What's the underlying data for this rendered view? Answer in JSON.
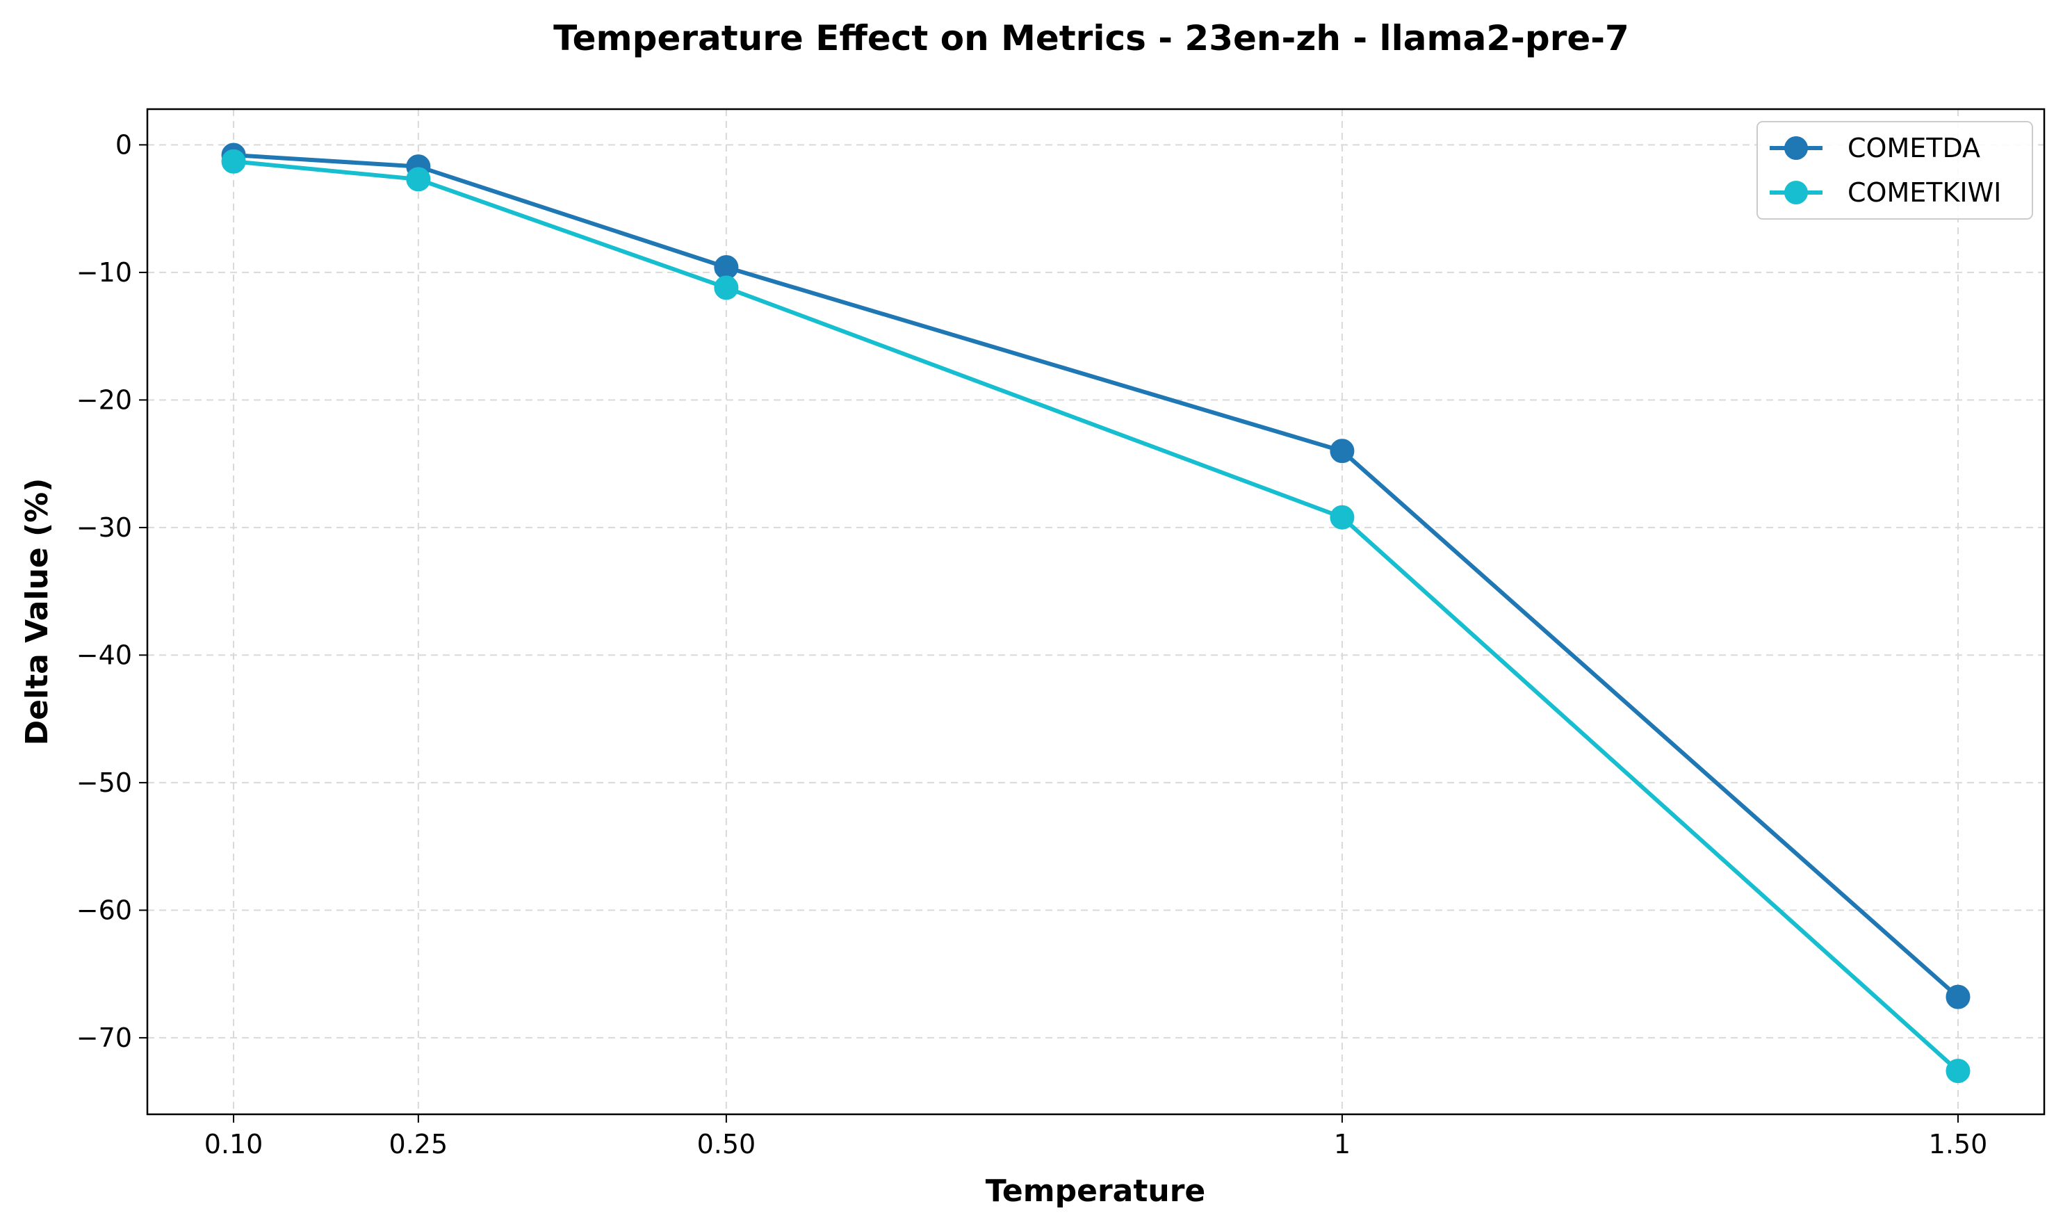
{
  "chart_data": {
    "type": "line",
    "title": "Temperature Effect on Metrics - 23en-zh - llama2-pre-7",
    "xlabel": "Temperature",
    "ylabel": "Delta Value (%)",
    "x": [
      0.1,
      0.25,
      0.5,
      1,
      1.5
    ],
    "x_tick_labels": [
      "0.10",
      "0.25",
      "0.50",
      "1",
      "1.50"
    ],
    "xlim": [
      0.03,
      1.57
    ],
    "ylim": [
      -76,
      2.8
    ],
    "y_ticks": [
      0,
      -10,
      -20,
      -30,
      -40,
      -50,
      -60,
      -70
    ],
    "y_tick_labels": [
      "0",
      "−10",
      "−20",
      "−30",
      "−40",
      "−50",
      "−60",
      "−70"
    ],
    "grid": true,
    "legend_position": "top-right",
    "series": [
      {
        "name": "COMETDA",
        "color": "#1f77b4",
        "values": [
          -0.8,
          -1.7,
          -9.6,
          -24.0,
          -66.8
        ]
      },
      {
        "name": "COMETKIWI",
        "color": "#17becf",
        "values": [
          -1.3,
          -2.7,
          -11.2,
          -29.2,
          -72.6
        ]
      }
    ]
  }
}
